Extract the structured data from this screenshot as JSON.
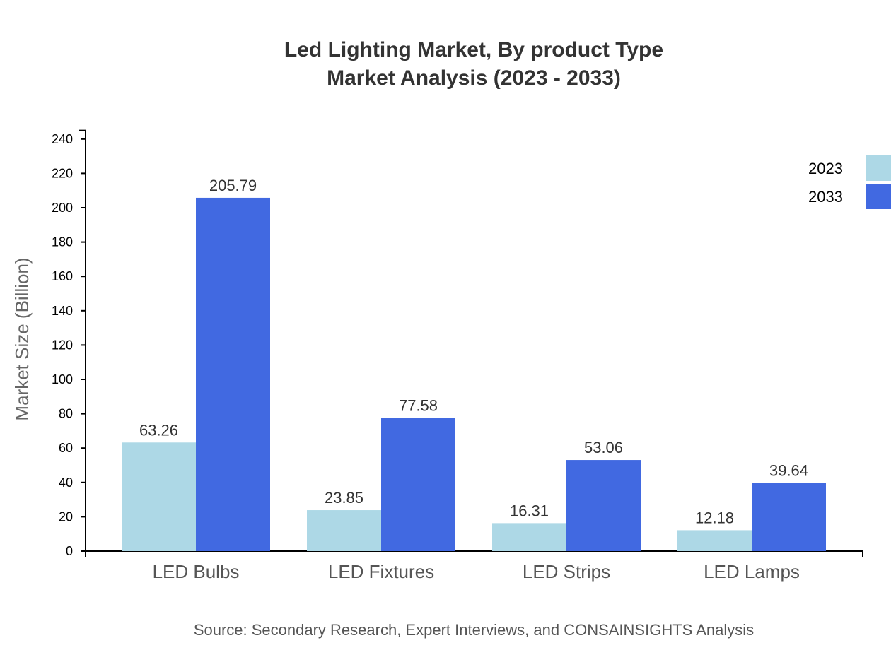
{
  "chart_data": {
    "type": "bar",
    "title": [
      "Led Lighting Market, By product Type",
      "Market Analysis (2023 - 2033)"
    ],
    "xlabel": "",
    "ylabel": "Market Size (Billion)",
    "ylim": [
      0,
      245
    ],
    "yticks": [
      0,
      20,
      40,
      60,
      80,
      100,
      120,
      140,
      160,
      180,
      200,
      220,
      240
    ],
    "categories": [
      "LED Bulbs",
      "LED Fixtures",
      "LED Strips",
      "LED Lamps"
    ],
    "series": [
      {
        "name": "2023",
        "color": "#ADD8E6",
        "values": [
          63.26,
          23.85,
          16.31,
          12.18
        ]
      },
      {
        "name": "2033",
        "color": "#4169E1",
        "values": [
          205.79,
          77.58,
          53.06,
          39.64
        ]
      }
    ],
    "legend_position": "top-right",
    "grid": false,
    "source": "Source: Secondary Research, Expert Interviews, and CONSAINSIGHTS Analysis"
  }
}
